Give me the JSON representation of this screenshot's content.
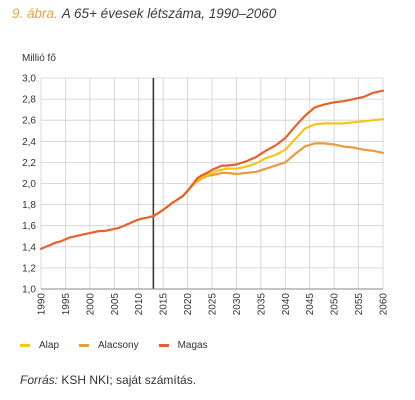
{
  "header": {
    "figure_label": "9. ábra.",
    "title_text": "A 65+ évesek létszáma, 1990–2060"
  },
  "footer": {
    "source_label": "Forrás:",
    "source_text": "KSH NKI; saját számítás."
  },
  "chart_data": {
    "type": "line",
    "title": "A 65+ évesek létszáma, 1990–2060",
    "ylabel": "Millió fő",
    "xlabel": "",
    "xlim": [
      1990,
      2060
    ],
    "ylim": [
      1.0,
      3.0
    ],
    "y_ticks": [
      "1,0",
      "1,2",
      "1,4",
      "1,6",
      "1,8",
      "2,0",
      "2,2",
      "2,4",
      "2,6",
      "2,8",
      "3,0"
    ],
    "y_tick_values": [
      1.0,
      1.2,
      1.4,
      1.6,
      1.8,
      2.0,
      2.2,
      2.4,
      2.6,
      2.8,
      3.0
    ],
    "x_ticks": [
      "1990",
      "1995",
      "2000",
      "2005",
      "2010",
      "2015",
      "2020",
      "2025",
      "2030",
      "2035",
      "2040",
      "2045",
      "2050",
      "2055",
      "2060"
    ],
    "x_tick_values": [
      1990,
      1995,
      2000,
      2005,
      2010,
      2015,
      2020,
      2025,
      2030,
      2035,
      2040,
      2045,
      2050,
      2055,
      2060
    ],
    "grid": true,
    "legend_position": "bottom-left",
    "marker_year": 2013,
    "historical": {
      "x": [
        1990,
        1991,
        1992,
        1993,
        1994,
        1995,
        1996,
        1997,
        1998,
        1999,
        2000,
        2001,
        2002,
        2003,
        2004,
        2005,
        2006,
        2007,
        2008,
        2009,
        2010,
        2011,
        2012,
        2013
      ],
      "y": [
        1.38,
        1.4,
        1.42,
        1.44,
        1.45,
        1.47,
        1.49,
        1.5,
        1.51,
        1.52,
        1.53,
        1.54,
        1.55,
        1.55,
        1.56,
        1.57,
        1.58,
        1.6,
        1.62,
        1.64,
        1.66,
        1.67,
        1.68,
        1.69
      ]
    },
    "series": [
      {
        "name": "Magas",
        "color": "#e8612c",
        "x": [
          2013,
          2015,
          2017,
          2019,
          2020,
          2021,
          2022,
          2023,
          2024,
          2025,
          2026,
          2027,
          2028,
          2030,
          2032,
          2034,
          2036,
          2038,
          2040,
          2042,
          2044,
          2046,
          2048,
          2050,
          2052,
          2054,
          2056,
          2058,
          2060
        ],
        "y": [
          1.69,
          1.75,
          1.82,
          1.88,
          1.93,
          1.99,
          2.05,
          2.08,
          2.1,
          2.13,
          2.15,
          2.17,
          2.17,
          2.18,
          2.21,
          2.25,
          2.31,
          2.36,
          2.43,
          2.54,
          2.64,
          2.72,
          2.75,
          2.77,
          2.78,
          2.8,
          2.82,
          2.86,
          2.88
        ]
      },
      {
        "name": "Alap",
        "color": "#f5c518",
        "x": [
          2013,
          2015,
          2017,
          2019,
          2020,
          2021,
          2022,
          2023,
          2024,
          2025,
          2026,
          2027,
          2028,
          2030,
          2032,
          2034,
          2036,
          2038,
          2040,
          2042,
          2044,
          2046,
          2048,
          2050,
          2052,
          2054,
          2056,
          2058,
          2060
        ],
        "y": [
          1.69,
          1.75,
          1.82,
          1.88,
          1.93,
          1.98,
          2.03,
          2.06,
          2.08,
          2.1,
          2.12,
          2.13,
          2.14,
          2.14,
          2.16,
          2.19,
          2.24,
          2.27,
          2.32,
          2.42,
          2.52,
          2.56,
          2.57,
          2.57,
          2.57,
          2.58,
          2.59,
          2.6,
          2.61
        ]
      },
      {
        "name": "Alacsony",
        "color": "#ed9a3c",
        "x": [
          2013,
          2015,
          2017,
          2019,
          2020,
          2021,
          2022,
          2023,
          2024,
          2025,
          2026,
          2027,
          2028,
          2030,
          2032,
          2034,
          2036,
          2038,
          2040,
          2042,
          2044,
          2046,
          2048,
          2050,
          2052,
          2054,
          2056,
          2058,
          2060
        ],
        "y": [
          1.69,
          1.75,
          1.82,
          1.88,
          1.93,
          1.98,
          2.02,
          2.05,
          2.07,
          2.08,
          2.09,
          2.1,
          2.1,
          2.09,
          2.1,
          2.11,
          2.14,
          2.17,
          2.2,
          2.28,
          2.35,
          2.38,
          2.38,
          2.37,
          2.35,
          2.34,
          2.32,
          2.31,
          2.29
        ]
      }
    ],
    "legend": [
      {
        "name": "Alap",
        "color": "#f5c518"
      },
      {
        "name": "Alacsony",
        "color": "#ed9a3c"
      },
      {
        "name": "Magas",
        "color": "#e8612c"
      }
    ]
  }
}
